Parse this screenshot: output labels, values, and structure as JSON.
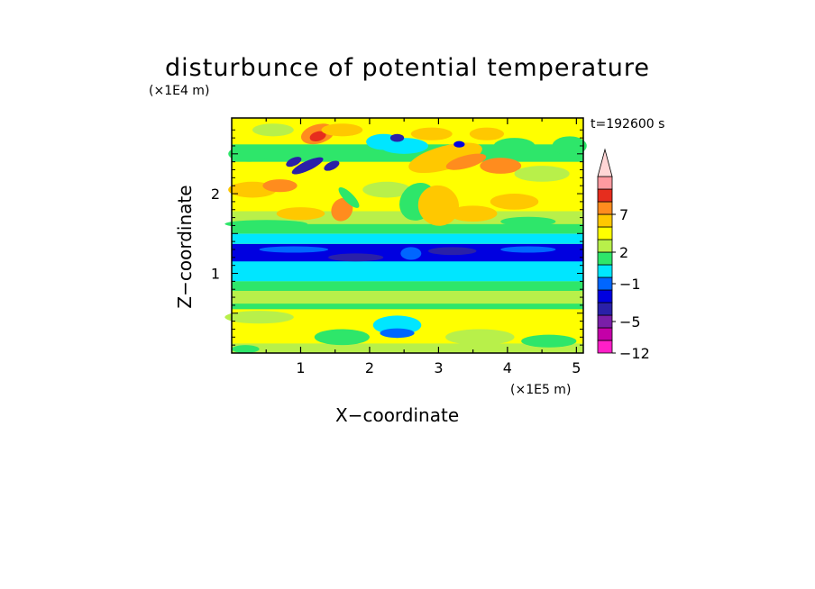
{
  "chart_data": {
    "type": "heatmap",
    "title": "disturbunce of potential temperature",
    "xlabel": "X−coordinate",
    "ylabel": "Z−coordinate",
    "x_unit_label": "(×1E5 m)",
    "y_unit_label": "(×1E4 m)",
    "time_label": "t=192600 s",
    "x_ticks": [
      "1",
      "2",
      "3",
      "4",
      "5"
    ],
    "y_ticks": [
      "1",
      "2"
    ],
    "xlim": [
      0,
      5.1
    ],
    "ylim": [
      0,
      2.95
    ],
    "colorbar": {
      "labels": [
        {
          "value": "7",
          "level": 7
        },
        {
          "value": "2",
          "level": 2
        },
        {
          "value": "−1",
          "level": -1
        },
        {
          "value": "−5",
          "level": -5
        },
        {
          "value": "−12",
          "level": -12
        }
      ],
      "levels": [
        -12,
        -10,
        -8,
        -5,
        -3,
        -2,
        -1,
        0,
        1,
        2,
        3,
        5,
        7,
        8,
        10
      ],
      "colors": [
        "#ff1fc8",
        "#c400a8",
        "#7a1ea8",
        "#2a20a8",
        "#0000e0",
        "#0066ff",
        "#00e6ff",
        "#2ee66a",
        "#b8f04a",
        "#ffff00",
        "#ffc800",
        "#ff8c1e",
        "#ff5a14",
        "#e62d1e",
        "#ff9aa0",
        "#ffd6d6"
      ]
    },
    "bands": [
      {
        "z_range": [
          0,
          0.15
        ],
        "dominant": "yellow/green"
      },
      {
        "z_range": [
          0.15,
          0.55
        ],
        "dominant": "yellow"
      },
      {
        "z_range": [
          0.55,
          0.9
        ],
        "dominant": "green"
      },
      {
        "z_range": [
          0.9,
          1.15
        ],
        "dominant": "cyan"
      },
      {
        "z_range": [
          1.15,
          1.35
        ],
        "dominant": "blue"
      },
      {
        "z_range": [
          1.35,
          1.5
        ],
        "dominant": "cyan"
      },
      {
        "z_range": [
          1.5,
          2.95
        ],
        "dominant": "yellow/green with orange and blue perturbations"
      }
    ]
  }
}
